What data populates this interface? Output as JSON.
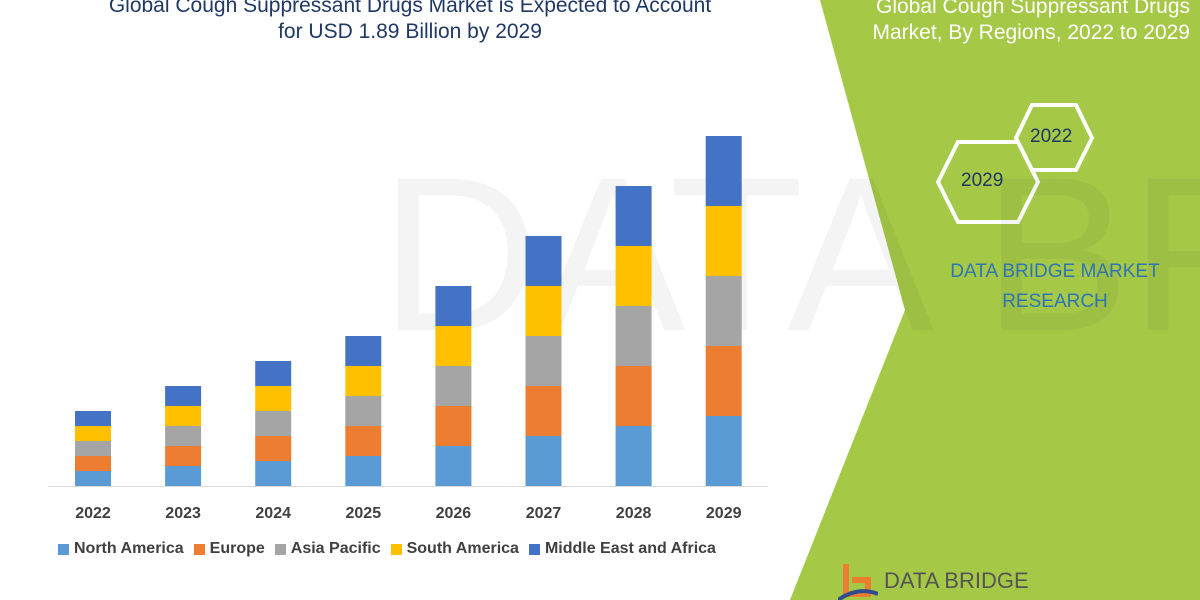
{
  "header": {
    "title_line1": "Global Cough Suppressant Drugs Market is Expected to Account",
    "title_line2": "for USD 1.89 Billion by 2029"
  },
  "side_panel": {
    "title_line1": "Global Cough Suppressant Drugs",
    "title_line2": "Market, By Regions, 2022 to 2029",
    "hex_front": "2029",
    "hex_back": "2022",
    "brand_line1": "DATA BRIDGE MARKET",
    "brand_line2": "RESEARCH",
    "logo_text": "DATA BRIDGE",
    "accent": "#a5c847"
  },
  "chart_data": {
    "type": "bar",
    "stacked": true,
    "title": "Global Cough Suppressant Drugs Market is Expected to Account for USD 1.89 Billion by 2029",
    "categories": [
      "2022",
      "2023",
      "2024",
      "2025",
      "2026",
      "2027",
      "2028",
      "2029"
    ],
    "series": [
      {
        "name": "North America",
        "color": "#5b9bd5",
        "values": [
          15,
          20,
          25,
          30,
          40,
          50,
          60,
          70
        ]
      },
      {
        "name": "Europe",
        "color": "#ed7d31",
        "values": [
          15,
          20,
          25,
          30,
          40,
          50,
          60,
          70
        ]
      },
      {
        "name": "Asia Pacific",
        "color": "#a5a5a5",
        "values": [
          15,
          20,
          25,
          30,
          40,
          50,
          60,
          70
        ]
      },
      {
        "name": "South America",
        "color": "#ffc000",
        "values": [
          15,
          20,
          25,
          30,
          40,
          50,
          60,
          70
        ]
      },
      {
        "name": "Middle East and Africa",
        "color": "#4472c4",
        "values": [
          15,
          20,
          25,
          30,
          40,
          50,
          60,
          70
        ]
      }
    ],
    "grid": false,
    "legend": "bottom",
    "yaxis_visible": false
  }
}
